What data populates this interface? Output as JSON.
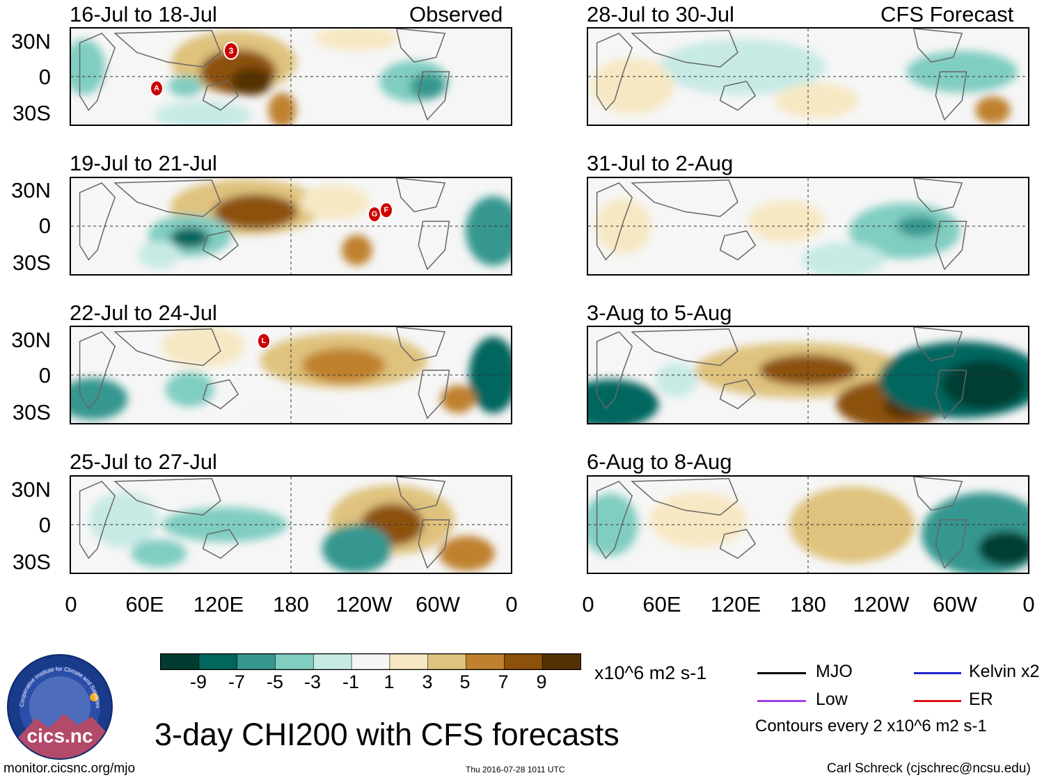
{
  "left_panels": [
    {
      "title": "16-Jul to 18-Jul",
      "label": "Observed"
    },
    {
      "title": "19-Jul to 21-Jul",
      "label": ""
    },
    {
      "title": "22-Jul to 24-Jul",
      "label": ""
    },
    {
      "title": "25-Jul to 27-Jul",
      "label": ""
    }
  ],
  "right_panels": [
    {
      "title": "28-Jul to 30-Jul",
      "label": "CFS Forecast"
    },
    {
      "title": "31-Jul to 2-Aug",
      "label": ""
    },
    {
      "title": "3-Aug to 5-Aug",
      "label": ""
    },
    {
      "title": "6-Aug to 8-Aug",
      "label": ""
    }
  ],
  "lat_ticks": [
    "30N",
    "0",
    "30S"
  ],
  "lon_ticks": [
    "0",
    "60E",
    "120E",
    "180",
    "120W",
    "60W",
    "0"
  ],
  "storm_markers": [
    {
      "panel": "left-1",
      "letter": "3"
    },
    {
      "panel": "left-1",
      "letter": "A"
    },
    {
      "panel": "left-2",
      "letter": "G"
    },
    {
      "panel": "left-2",
      "letter": "F"
    },
    {
      "panel": "left-3",
      "letter": "L"
    }
  ],
  "colorbar": {
    "labels": [
      "-9",
      "-7",
      "-5",
      "-3",
      "-1",
      "1",
      "3",
      "5",
      "7",
      "9"
    ],
    "colors": [
      "#003c30",
      "#01665e",
      "#35978f",
      "#80cdc1",
      "#c7eae5",
      "#f5f5f5",
      "#f6e8c3",
      "#dfc27d",
      "#bf812d",
      "#8c510a",
      "#543005"
    ],
    "units": "x10^6 m2 s-1"
  },
  "legend": {
    "items": [
      {
        "label": "MJO",
        "color": "#000000"
      },
      {
        "label": "Kelvin x2",
        "color": "#2222cc"
      },
      {
        "label": "Low",
        "color": "#a040e0"
      },
      {
        "label": "ER",
        "color": "#dd1111"
      }
    ],
    "contour_note": "Contours every 2 x10^6 m2 s-1"
  },
  "logo": {
    "text": "cics.nc",
    "ring_text": "Cooperative Institute for Climate and Satellites"
  },
  "main_title": "3-day CHI200 with CFS forecasts",
  "footer": {
    "left": "monitor.cicsnc.org/mjo",
    "center": "Thu 2016-07-28 1011 UTC",
    "right": "Carl Schreck (cjschrec@ncsu.edu)"
  }
}
